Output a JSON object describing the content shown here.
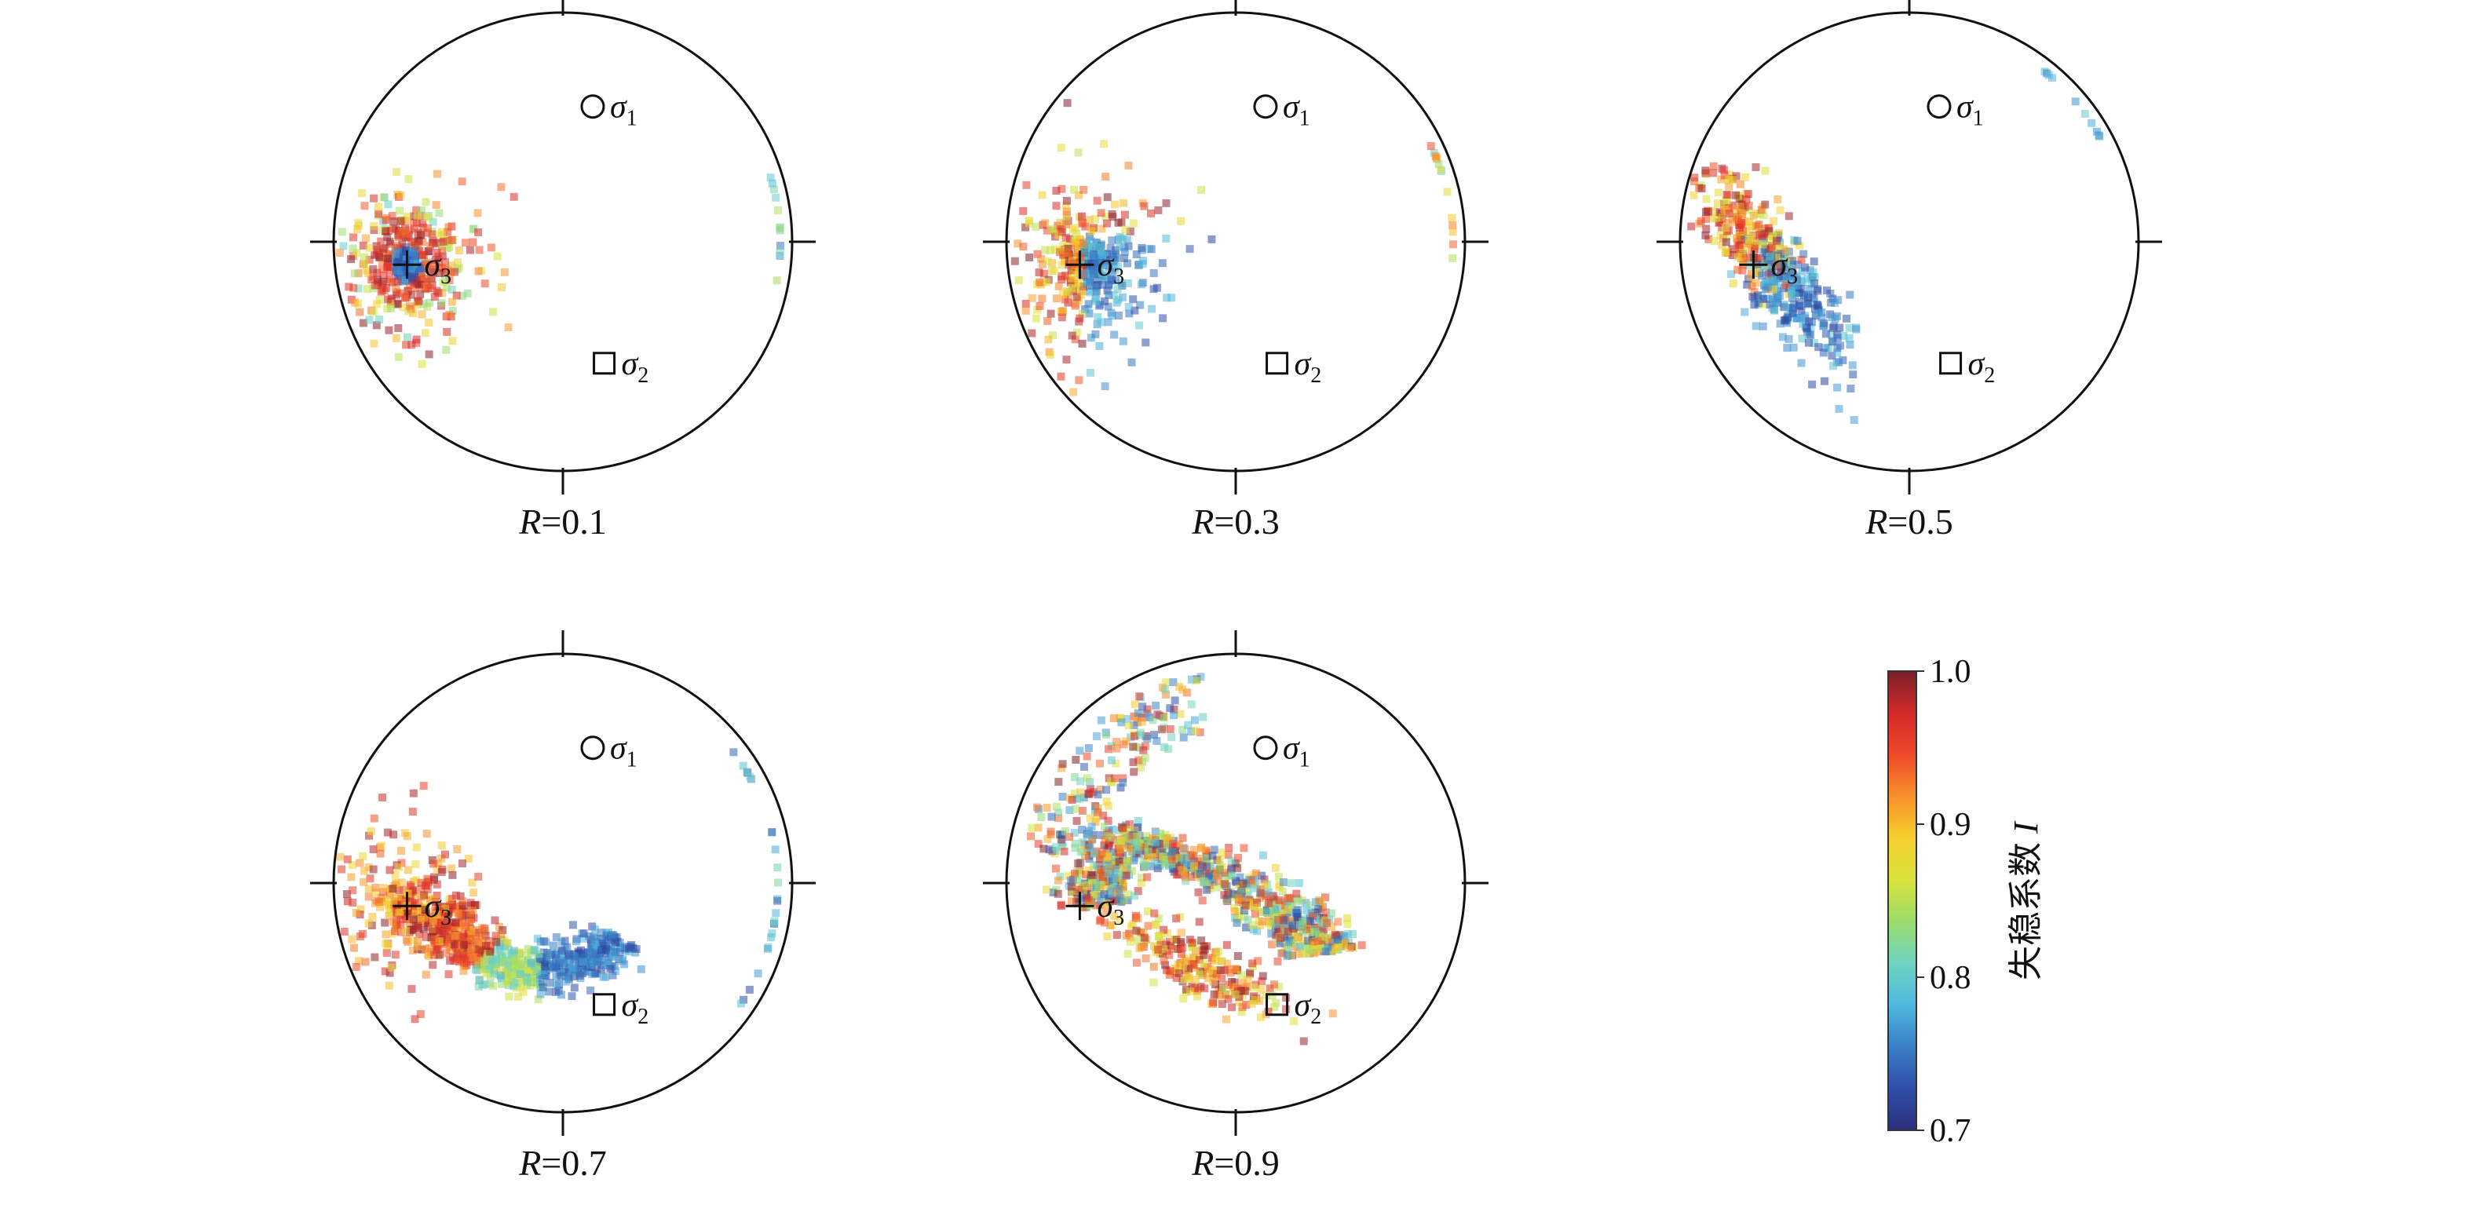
{
  "chart_data": [
    {
      "type": "scatter",
      "subtitle": "R=0.1",
      "r_var": "R",
      "r_value": "0.1",
      "markers": [
        {
          "symbol": "circle",
          "label": "σ",
          "sub": "1"
        },
        {
          "symbol": "square",
          "label": "σ",
          "sub": "2"
        },
        {
          "symbol": "cross",
          "label": "σ",
          "sub": "3"
        }
      ]
    },
    {
      "type": "scatter",
      "subtitle": "R=0.3",
      "r_var": "R",
      "r_value": "0.3",
      "markers": [
        {
          "symbol": "circle",
          "label": "σ",
          "sub": "1"
        },
        {
          "symbol": "square",
          "label": "σ",
          "sub": "2"
        },
        {
          "symbol": "cross",
          "label": "σ",
          "sub": "3"
        }
      ]
    },
    {
      "type": "scatter",
      "subtitle": "R=0.5",
      "r_var": "R",
      "r_value": "0.5",
      "markers": [
        {
          "symbol": "circle",
          "label": "σ",
          "sub": "1"
        },
        {
          "symbol": "square",
          "label": "σ",
          "sub": "2"
        },
        {
          "symbol": "cross",
          "label": "σ",
          "sub": "3"
        }
      ]
    },
    {
      "type": "scatter",
      "subtitle": "R=0.7",
      "r_var": "R",
      "r_value": "0.7",
      "markers": [
        {
          "symbol": "circle",
          "label": "σ",
          "sub": "1"
        },
        {
          "symbol": "square",
          "label": "σ",
          "sub": "2"
        },
        {
          "symbol": "cross",
          "label": "σ",
          "sub": "3"
        }
      ]
    },
    {
      "type": "scatter",
      "subtitle": "R=0.9",
      "r_var": "R",
      "r_value": "0.9",
      "markers": [
        {
          "symbol": "circle",
          "label": "σ",
          "sub": "1"
        },
        {
          "symbol": "square",
          "label": "σ",
          "sub": "2"
        },
        {
          "symbol": "cross",
          "label": "σ",
          "sub": "3"
        }
      ]
    }
  ],
  "colorbar": {
    "label": "失稳系数 I",
    "label_text": "失稳系数 ",
    "label_var": "I",
    "min": 0.7,
    "max": 1.0,
    "ticks": [
      "0.7",
      "0.8",
      "0.9",
      "1.0"
    ],
    "colors": [
      "#2b2f7a",
      "#2f4ea8",
      "#3a7fc6",
      "#4fb9e0",
      "#6fd3bf",
      "#9bdc6a",
      "#d7e33c",
      "#f6cf2c",
      "#f7912a",
      "#ee4a2a",
      "#d42a2a",
      "#7a1f2a"
    ]
  }
}
